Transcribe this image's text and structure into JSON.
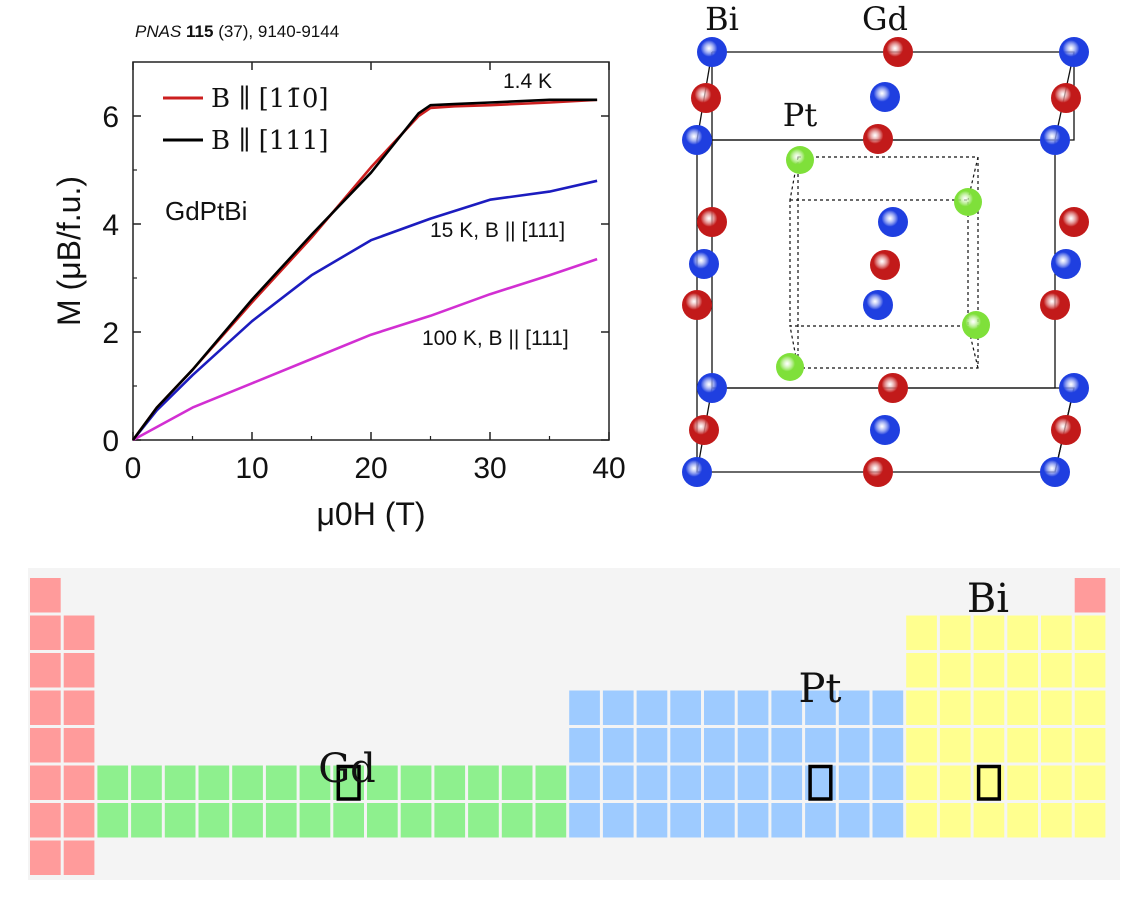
{
  "citation": {
    "journal": "PNAS",
    "volume": "115",
    "rest": " (37), 9140-9144"
  },
  "chart_data": {
    "type": "line",
    "xlabel": "μ0H (T)",
    "ylabel": "M (μB/f.u.)",
    "xlim": [
      0,
      40
    ],
    "ylim": [
      0,
      7
    ],
    "xticks": [
      "0",
      "10",
      "20",
      "30",
      "40"
    ],
    "yticks": [
      "0",
      "2",
      "4",
      "6"
    ],
    "grid": false,
    "legend_position": "top-left",
    "material_label": "GdPtBi",
    "annotations": [
      "1.4 K",
      "15 K, B || [111]",
      "100 K, B || [111]"
    ],
    "series": [
      {
        "name": "B ∥ [11̄0]",
        "color": "#cc1f1f",
        "x": [
          0,
          2,
          5,
          10,
          15,
          20,
          24,
          25,
          27,
          30,
          35,
          39
        ],
        "y": [
          0,
          0.6,
          1.3,
          2.55,
          3.75,
          5.05,
          6.0,
          6.15,
          6.18,
          6.2,
          6.25,
          6.3
        ]
      },
      {
        "name": "B ∥ [111]",
        "color": "#000000",
        "x": [
          0,
          2,
          5,
          10,
          15,
          20,
          24,
          25,
          27,
          30,
          35,
          39
        ],
        "y": [
          0,
          0.6,
          1.3,
          2.6,
          3.8,
          4.95,
          6.05,
          6.2,
          6.22,
          6.25,
          6.3,
          6.3
        ]
      },
      {
        "name": "15 K, B || [111]",
        "color": "#1c1cbf",
        "x": [
          0,
          2,
          5,
          10,
          15,
          20,
          25,
          30,
          35,
          39
        ],
        "y": [
          0,
          0.55,
          1.2,
          2.2,
          3.05,
          3.7,
          4.1,
          4.45,
          4.6,
          4.8
        ]
      },
      {
        "name": "100 K, B || [111]",
        "color": "#d22fd2",
        "x": [
          0,
          5,
          10,
          15,
          20,
          25,
          30,
          35,
          39
        ],
        "y": [
          0,
          0.6,
          1.05,
          1.5,
          1.95,
          2.3,
          2.7,
          3.05,
          3.35
        ]
      }
    ]
  },
  "crystal": {
    "labels": {
      "bi": "Bi",
      "gd": "Gd",
      "pt": "Pt"
    },
    "colors": {
      "bi": "#1f3fe0",
      "gd": "#c21a1a",
      "pt": "#7fe03a"
    }
  },
  "periodic_table": {
    "labels": {
      "gd": "Gd",
      "pt": "Pt",
      "bi": "Bi"
    },
    "colors": {
      "s_block": "#ff9b9b",
      "f_block": "#8ef08e",
      "d_block": "#9ecbff",
      "p_block": "#ffff8f",
      "background": "#f4f4f4"
    }
  }
}
